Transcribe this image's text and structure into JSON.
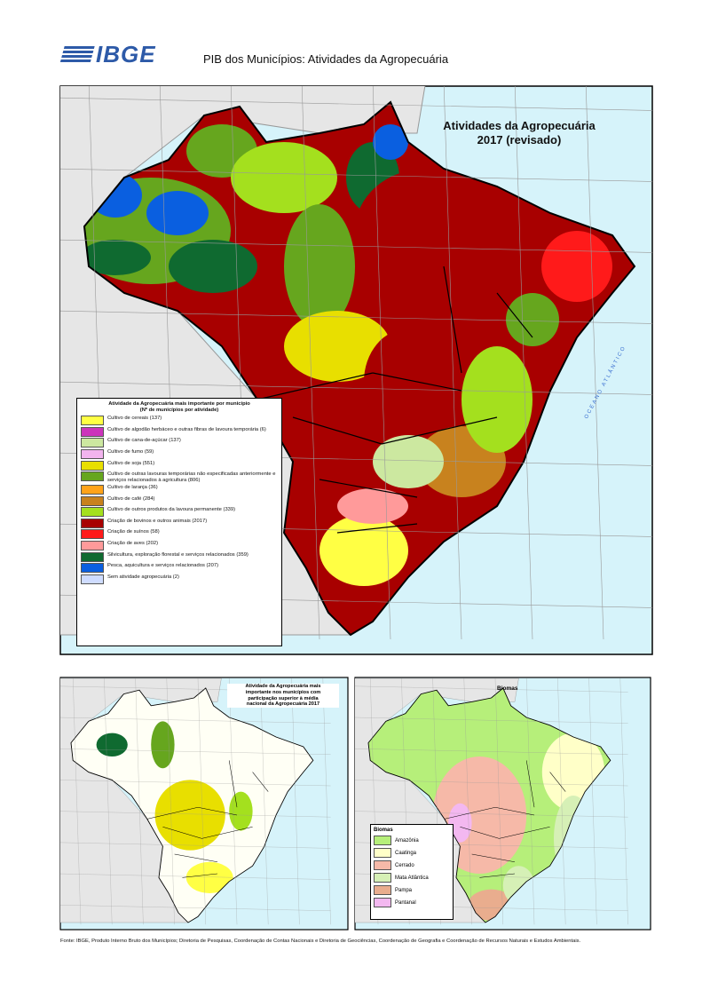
{
  "header": {
    "logo": "IBGE",
    "title": "PIB dos Municípios: Atividades da Agropecuária"
  },
  "main_map": {
    "title_lines": [
      "Atividades da Agropecuária",
      "2017 (revisado)"
    ],
    "ocean_label": "OCEANO ATLÂNTICO",
    "legend": {
      "title": "Atividade da Agropecuária mais importante por município",
      "subtitle": "(Nº de municípios por atividade)",
      "items": [
        {
          "label": "Cultivo de cereais (137)",
          "color": "#ffff44"
        },
        {
          "label": "Cultivo de algodão herbáceo e outras fibras de lavoura temporária (6)",
          "color": "#cc33bb"
        },
        {
          "label": "Cultivo de cana-de-açúcar (137)",
          "color": "#cce8a0"
        },
        {
          "label": "Cultivo de fumo (59)",
          "color": "#f2b4ee"
        },
        {
          "label": "Cultivo de soja (551)",
          "color": "#e8df00"
        },
        {
          "label": "Cultivo de outras lavouras temporárias não especificadas anteriormente e serviços relacionados à agricultura (806)",
          "color": "#66a61e"
        },
        {
          "label": "Cultivo de laranja (36)",
          "color": "#ffa31a"
        },
        {
          "label": "Cultivo de café (284)",
          "color": "#c8821e"
        },
        {
          "label": "Cultivo de outros produtos da lavoura permanente (339)",
          "color": "#a4e01e"
        },
        {
          "label": "Criação de bovinos e outros animais (2017)",
          "color": "#a80000"
        },
        {
          "label": "Criação de suínos (58)",
          "color": "#ff1a1a"
        },
        {
          "label": "Criação de aves (202)",
          "color": "#ff9a9a"
        },
        {
          "label": "Silvicultura, exploração florestal e serviços relacionados (359)",
          "color": "#0f6a30"
        },
        {
          "label": "Pesca, aquicultura e serviços relacionados (207)",
          "color": "#0a5fe0"
        },
        {
          "label": "Sem atividade agropecuária (2)",
          "color": "#cfdcff"
        }
      ]
    }
  },
  "inset_activity": {
    "title_lines": [
      "Atividade da Agropecuária mais",
      "importante nos municípios com",
      "participação superior à média",
      "nacional da Agropecuária 2017"
    ]
  },
  "inset_biomes": {
    "title": "Biomas",
    "legend": {
      "title": "Biomas",
      "items": [
        {
          "label": "Amazônia",
          "color": "#b6ef7a"
        },
        {
          "label": "Caatinga",
          "color": "#ffffc8"
        },
        {
          "label": "Cerrado",
          "color": "#f6b9a8"
        },
        {
          "label": "Mata Atlântica",
          "color": "#d6f0b6"
        },
        {
          "label": "Pampa",
          "color": "#e9ad8e"
        },
        {
          "label": "Pantanal",
          "color": "#f3b8f0"
        }
      ]
    }
  },
  "footer": {
    "text": "Fonte: IBGE, Produto Interno Bruto dos Municípios; Diretoria de Pesquisas, Coordenação de Contas Nacionais e Diretoria de Geociências, Coordenação de Geografia e Coordenação de Recursos Naturais e Estudos Ambientais."
  }
}
